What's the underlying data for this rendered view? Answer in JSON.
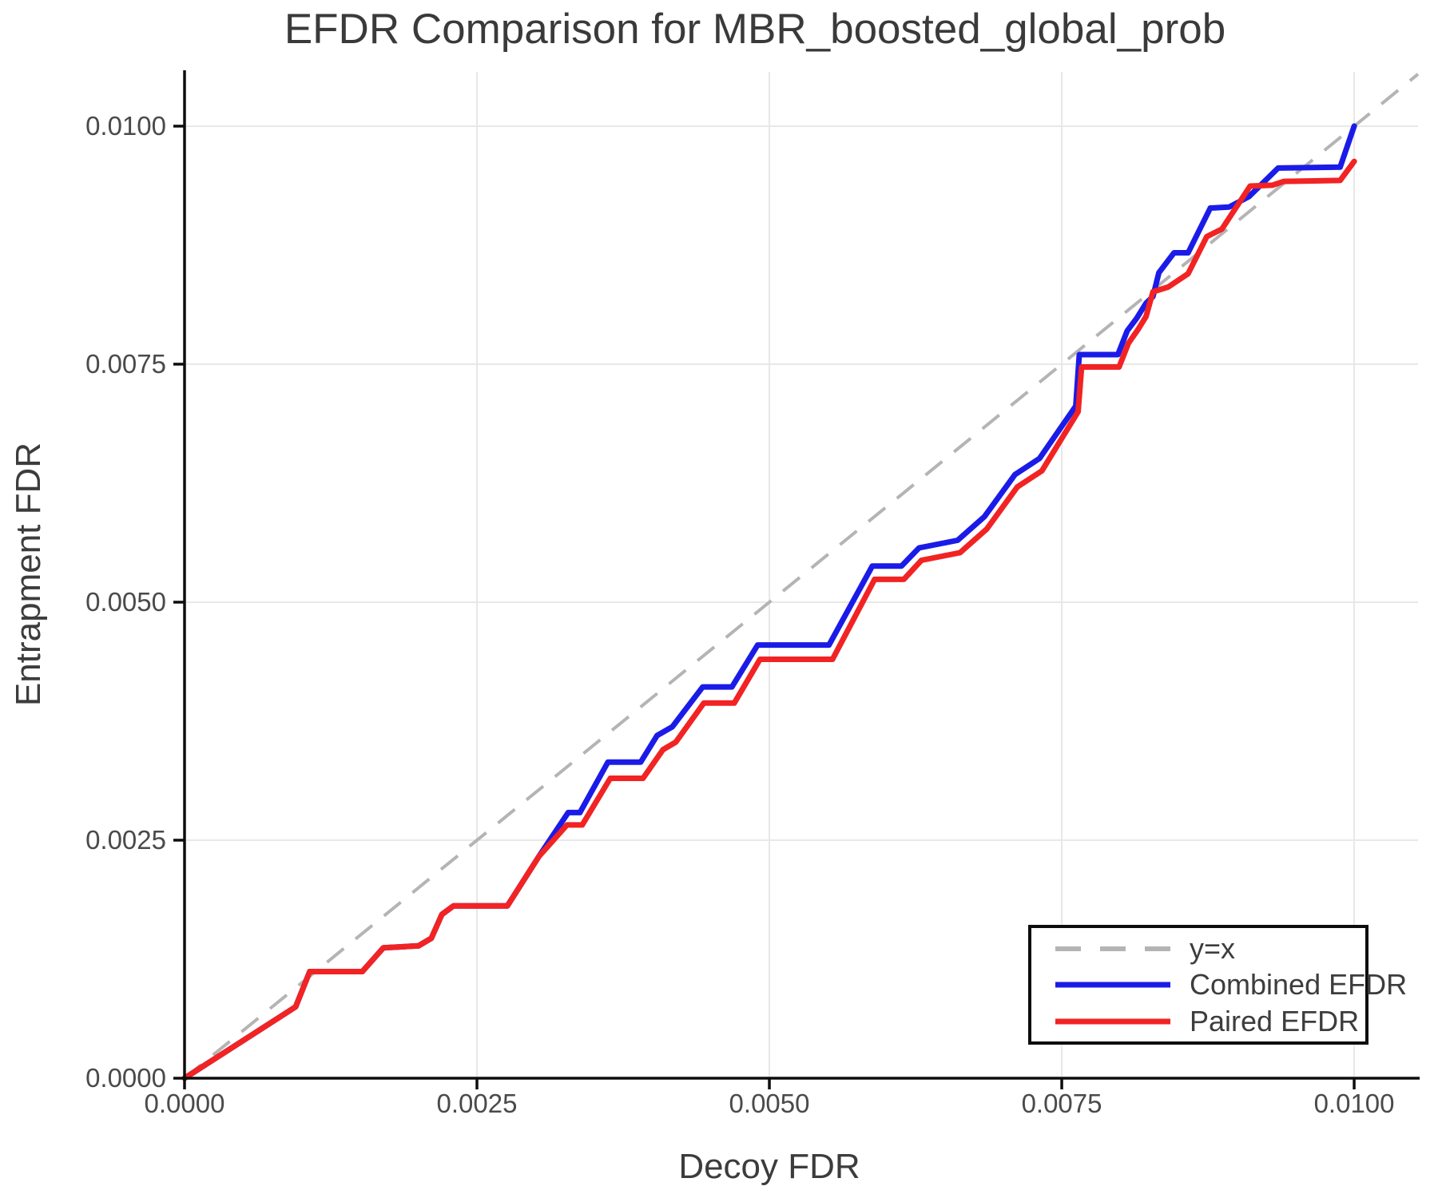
{
  "title": "EFDR Comparison for MBR_boosted_global_prob",
  "chart_data": {
    "type": "line",
    "title": "EFDR Comparison for MBR_boosted_global_prob",
    "xlabel": "Decoy FDR",
    "ylabel": "Entrapment FDR",
    "xlim": [
      0,
      0.010546
    ],
    "ylim": [
      0,
      0.01057
    ],
    "x_ticks": [
      0.0,
      0.0025,
      0.005,
      0.0075,
      0.01
    ],
    "x_tick_labels": [
      "0.0000",
      "0.0025",
      "0.0050",
      "0.0075",
      "0.0100"
    ],
    "y_ticks": [
      0.0,
      0.0025,
      0.005,
      0.0075,
      0.01
    ],
    "y_tick_labels": [
      "0.0000",
      "0.0025",
      "0.0050",
      "0.0075",
      "0.0100"
    ],
    "grid": true,
    "grid_color": "#e8e8e8",
    "spine_color": "#0d0d0d",
    "legend_position": "lower right",
    "reference_line": {
      "label": "y=x",
      "style": "dashed",
      "color": "#b4b4b4",
      "points": [
        [
          0,
          0
        ],
        [
          0.010546,
          0.010546
        ]
      ]
    },
    "series": [
      {
        "name": "Combined EFDR",
        "color": "#1b1be8",
        "points": [
          [
            0.0,
            0.0
          ],
          [
            0.00095,
            0.00075
          ],
          [
            0.00107,
            0.00112
          ],
          [
            0.00152,
            0.00112
          ],
          [
            0.0017,
            0.00137
          ],
          [
            0.002,
            0.00139
          ],
          [
            0.00211,
            0.00147
          ],
          [
            0.0022,
            0.00172
          ],
          [
            0.0023,
            0.00181
          ],
          [
            0.00276,
            0.00181
          ],
          [
            0.00303,
            0.00233
          ],
          [
            0.00328,
            0.00279
          ],
          [
            0.00338,
            0.00279
          ],
          [
            0.00362,
            0.00332
          ],
          [
            0.0039,
            0.00332
          ],
          [
            0.00404,
            0.0036
          ],
          [
            0.00417,
            0.00369
          ],
          [
            0.00443,
            0.00411
          ],
          [
            0.00468,
            0.00411
          ],
          [
            0.0049,
            0.00455
          ],
          [
            0.00551,
            0.00455
          ],
          [
            0.00588,
            0.00538
          ],
          [
            0.00613,
            0.00538
          ],
          [
            0.00628,
            0.00557
          ],
          [
            0.00661,
            0.00565
          ],
          [
            0.00684,
            0.0059
          ],
          [
            0.0071,
            0.00634
          ],
          [
            0.00731,
            0.00651
          ],
          [
            0.00762,
            0.00706
          ],
          [
            0.00765,
            0.0076
          ],
          [
            0.00798,
            0.0076
          ],
          [
            0.00806,
            0.00785
          ],
          [
            0.00814,
            0.00798
          ],
          [
            0.00822,
            0.00814
          ],
          [
            0.00828,
            0.00821
          ],
          [
            0.00833,
            0.00846
          ],
          [
            0.00846,
            0.00867
          ],
          [
            0.00858,
            0.00867
          ],
          [
            0.00877,
            0.00914
          ],
          [
            0.00893,
            0.00915
          ],
          [
            0.0091,
            0.00926
          ],
          [
            0.00935,
            0.00956
          ],
          [
            0.00988,
            0.00957
          ],
          [
            0.01,
            0.01
          ]
        ]
      },
      {
        "name": "Paired EFDR",
        "color": "#f22323",
        "points": [
          [
            0.0,
            0.0
          ],
          [
            0.00095,
            0.00075
          ],
          [
            0.00107,
            0.00112
          ],
          [
            0.00152,
            0.00112
          ],
          [
            0.0017,
            0.00137
          ],
          [
            0.002,
            0.00139
          ],
          [
            0.00211,
            0.00147
          ],
          [
            0.0022,
            0.00172
          ],
          [
            0.0023,
            0.00181
          ],
          [
            0.00276,
            0.00181
          ],
          [
            0.00303,
            0.00233
          ],
          [
            0.00327,
            0.00266
          ],
          [
            0.0034,
            0.00266
          ],
          [
            0.00364,
            0.00315
          ],
          [
            0.00392,
            0.00315
          ],
          [
            0.00409,
            0.00345
          ],
          [
            0.0042,
            0.00353
          ],
          [
            0.00444,
            0.00394
          ],
          [
            0.0047,
            0.00394
          ],
          [
            0.00492,
            0.0044
          ],
          [
            0.00554,
            0.0044
          ],
          [
            0.0059,
            0.00524
          ],
          [
            0.00615,
            0.00524
          ],
          [
            0.0063,
            0.00544
          ],
          [
            0.00663,
            0.00552
          ],
          [
            0.00686,
            0.00577
          ],
          [
            0.00712,
            0.00621
          ],
          [
            0.00733,
            0.00638
          ],
          [
            0.00764,
            0.007
          ],
          [
            0.00767,
            0.00747
          ],
          [
            0.00799,
            0.00747
          ],
          [
            0.00807,
            0.00772
          ],
          [
            0.00815,
            0.00786
          ],
          [
            0.00822,
            0.008
          ],
          [
            0.00828,
            0.00826
          ],
          [
            0.00841,
            0.00831
          ],
          [
            0.00858,
            0.00845
          ],
          [
            0.00874,
            0.00884
          ],
          [
            0.00887,
            0.00892
          ],
          [
            0.00911,
            0.00937
          ],
          [
            0.0093,
            0.00938
          ],
          [
            0.0094,
            0.00942
          ],
          [
            0.00988,
            0.00943
          ],
          [
            0.01,
            0.00963
          ]
        ]
      }
    ]
  },
  "legend": {
    "items": [
      {
        "label": "y=x"
      },
      {
        "label": "Combined EFDR"
      },
      {
        "label": "Paired EFDR"
      }
    ]
  }
}
